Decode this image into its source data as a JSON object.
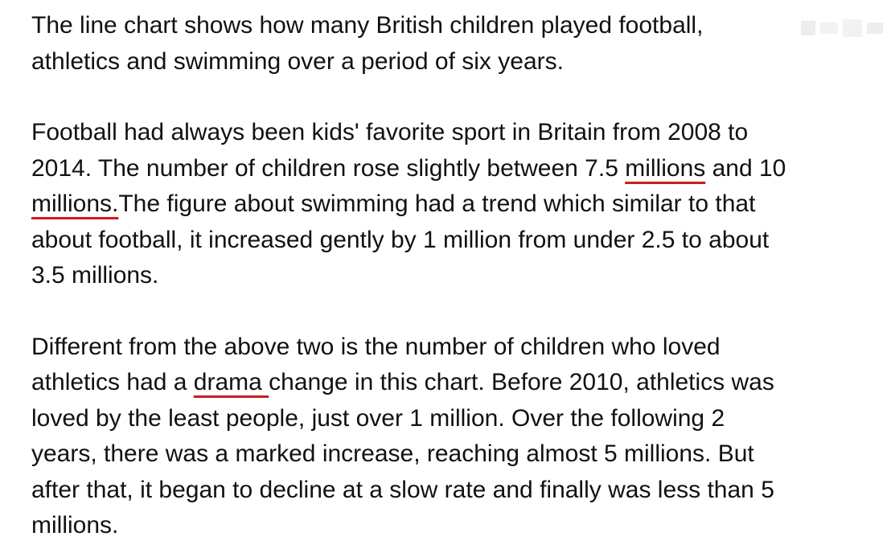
{
  "document": {
    "paragraphs": [
      {
        "lines": [
          [
            {
              "text": "The line chart shows how many British children played football,"
            }
          ],
          [
            {
              "text": "athletics and swimming over a period of six years."
            }
          ]
        ]
      },
      {
        "lines": [
          [
            {
              "text": "Football had always been kids' favorite sport in Britain from 2008 to"
            }
          ],
          [
            {
              "text": "2014. The number of children rose slightly between 7.5 "
            },
            {
              "text": "millions",
              "flag": true
            },
            {
              "text": " and 10"
            }
          ],
          [
            {
              "text": "millions.",
              "flag": true
            },
            {
              "text": "The figure about swimming had a trend which similar to that"
            }
          ],
          [
            {
              "text": "about football, it increased gently by 1 million from under 2.5 to about"
            }
          ],
          [
            {
              "text": "3.5 millions."
            }
          ]
        ]
      },
      {
        "lines": [
          [
            {
              "text": "Different from the above two is the number of children who loved"
            }
          ],
          [
            {
              "text": "athletics had a "
            },
            {
              "text": "drama ",
              "flag": true
            },
            {
              "text": "change in this chart. Before 2010, athletics was"
            }
          ],
          [
            {
              "text": "loved by the least people, just over 1 million. Over the following 2"
            }
          ],
          [
            {
              "text": "years, there was a marked increase, reaching almost 5 millions. But"
            }
          ],
          [
            {
              "text": "after that, it began to decline at a slow rate and finally was less than 5"
            }
          ],
          [
            {
              "text": "millions."
            }
          ]
        ]
      }
    ]
  },
  "colors": {
    "text": "#111111",
    "spellcheck_underline": "#c81e1e",
    "background": "#ffffff"
  }
}
